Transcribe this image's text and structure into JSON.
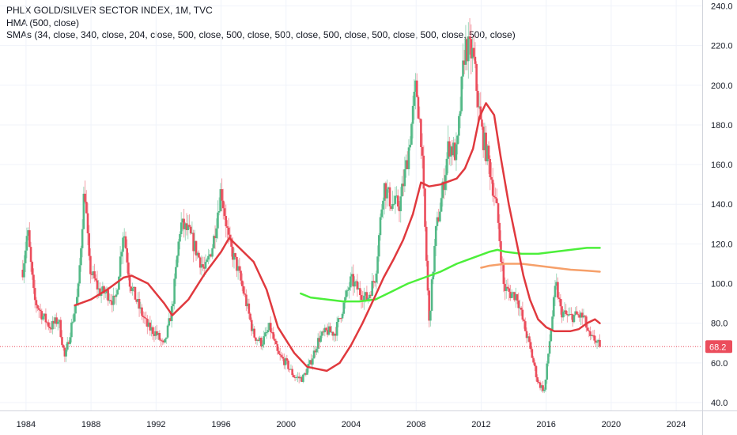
{
  "legend": {
    "title": "PHLX GOLD/SILVER SECTOR INDEX, 1M, TVC",
    "hma": "HMA (500, close)",
    "smas": "SMAs (34, close, 340, close, 204, close, 500, close, 500, close, 500, close, 500, close, 500, close, 500, close, 500, close)"
  },
  "price_label": "68.2",
  "colors": {
    "up": "#53b987",
    "down": "#eb4d5c",
    "hma": "#e0393e",
    "sma_green": "#4cef3a",
    "sma_orange": "#f6a06a",
    "grid": "#f0f3fa",
    "price_line": "#eb4d5c"
  },
  "chart_data": {
    "type": "candlestick",
    "x_ticks": [
      "1984",
      "1988",
      "1992",
      "1996",
      "2000",
      "2004",
      "2008",
      "2012",
      "2016",
      "2020",
      "2024"
    ],
    "y_ticks": [
      "40.0",
      "60.0",
      "80.0",
      "100.0",
      "120.0",
      "140.0",
      "160.0",
      "180.0",
      "200.0",
      "220.0",
      "240.0"
    ],
    "ylim": [
      36,
      243
    ],
    "xlim": [
      1982.4,
      2025.6
    ],
    "last_price": 68.2,
    "price_series": [
      [
        1983.8,
        107
      ],
      [
        1984.1,
        127
      ],
      [
        1984.5,
        92
      ],
      [
        1985.0,
        84
      ],
      [
        1985.5,
        78
      ],
      [
        1986.0,
        82
      ],
      [
        1986.4,
        62
      ],
      [
        1986.7,
        75
      ],
      [
        1987.2,
        95
      ],
      [
        1987.6,
        150
      ],
      [
        1987.9,
        108
      ],
      [
        1988.5,
        96
      ],
      [
        1989.0,
        95
      ],
      [
        1989.5,
        90
      ],
      [
        1990.0,
        128
      ],
      [
        1990.4,
        100
      ],
      [
        1991.0,
        87
      ],
      [
        1991.5,
        78
      ],
      [
        1992.0,
        75
      ],
      [
        1992.5,
        68
      ],
      [
        1993.0,
        88
      ],
      [
        1993.5,
        130
      ],
      [
        1994.0,
        126
      ],
      [
        1994.5,
        116
      ],
      [
        1995.0,
        106
      ],
      [
        1995.5,
        120
      ],
      [
        1996.0,
        148
      ],
      [
        1996.5,
        120
      ],
      [
        1997.0,
        108
      ],
      [
        1997.5,
        92
      ],
      [
        1998.0,
        74
      ],
      [
        1998.5,
        70
      ],
      [
        1999.0,
        78
      ],
      [
        1999.5,
        64
      ],
      [
        2000.0,
        60
      ],
      [
        2000.5,
        53
      ],
      [
        2001.0,
        52
      ],
      [
        2001.5,
        60
      ],
      [
        2002.0,
        72
      ],
      [
        2002.5,
        76
      ],
      [
        2003.0,
        75
      ],
      [
        2003.5,
        88
      ],
      [
        2004.0,
        102
      ],
      [
        2004.5,
        96
      ],
      [
        2005.0,
        92
      ],
      [
        2005.5,
        104
      ],
      [
        2006.0,
        150
      ],
      [
        2006.5,
        140
      ],
      [
        2007.0,
        140
      ],
      [
        2007.5,
        165
      ],
      [
        2008.0,
        200
      ],
      [
        2008.3,
        175
      ],
      [
        2008.8,
        80
      ],
      [
        2009.2,
        125
      ],
      [
        2009.6,
        145
      ],
      [
        2010.0,
        170
      ],
      [
        2010.5,
        165
      ],
      [
        2011.0,
        220
      ],
      [
        2011.5,
        215
      ],
      [
        2012.0,
        178
      ],
      [
        2012.5,
        160
      ],
      [
        2013.0,
        135
      ],
      [
        2013.4,
        98
      ],
      [
        2013.8,
        95
      ],
      [
        2014.2,
        94
      ],
      [
        2014.6,
        80
      ],
      [
        2015.0,
        68
      ],
      [
        2015.5,
        50
      ],
      [
        2015.9,
        46
      ],
      [
        2016.2,
        70
      ],
      [
        2016.6,
        100
      ],
      [
        2016.9,
        86
      ],
      [
        2017.4,
        83
      ],
      [
        2017.9,
        84
      ],
      [
        2018.3,
        83
      ],
      [
        2018.7,
        72
      ],
      [
        2019.0,
        72
      ],
      [
        2019.3,
        68.2
      ]
    ],
    "hma_series": [
      [
        1987.0,
        89
      ],
      [
        1988.0,
        92
      ],
      [
        1989.0,
        97
      ],
      [
        1990.0,
        103
      ],
      [
        1990.5,
        104
      ],
      [
        1991.5,
        100
      ],
      [
        1992.5,
        90
      ],
      [
        1993.0,
        84
      ],
      [
        1994.0,
        92
      ],
      [
        1995.0,
        105
      ],
      [
        1996.0,
        116
      ],
      [
        1996.5,
        123
      ],
      [
        1997.0,
        119
      ],
      [
        1998.0,
        111
      ],
      [
        1998.8,
        97
      ],
      [
        1999.5,
        78
      ],
      [
        2000.5,
        65
      ],
      [
        2001.3,
        58
      ],
      [
        2002.5,
        56
      ],
      [
        2003.3,
        60
      ],
      [
        2004.0,
        69
      ],
      [
        2004.7,
        80
      ],
      [
        2005.5,
        94
      ],
      [
        2006.0,
        103
      ],
      [
        2006.6,
        112
      ],
      [
        2007.2,
        122
      ],
      [
        2007.8,
        135
      ],
      [
        2008.3,
        151
      ],
      [
        2008.8,
        149
      ],
      [
        2009.5,
        150
      ],
      [
        2010.5,
        153
      ],
      [
        2011.0,
        158
      ],
      [
        2011.5,
        168
      ],
      [
        2011.9,
        184
      ],
      [
        2012.3,
        191
      ],
      [
        2012.8,
        185
      ],
      [
        2013.2,
        164
      ],
      [
        2013.7,
        140
      ],
      [
        2014.2,
        120
      ],
      [
        2014.6,
        104
      ],
      [
        2015.0,
        92
      ],
      [
        2015.5,
        82
      ],
      [
        2016.0,
        78
      ],
      [
        2016.5,
        76
      ],
      [
        2017.0,
        76
      ],
      [
        2017.5,
        76
      ],
      [
        2018.0,
        77
      ],
      [
        2018.5,
        80
      ],
      [
        2019.0,
        82
      ],
      [
        2019.3,
        80
      ]
    ],
    "sma_green_series": [
      [
        2000.9,
        95
      ],
      [
        2001.5,
        93
      ],
      [
        2002.5,
        92
      ],
      [
        2003.5,
        91
      ],
      [
        2004.5,
        91
      ],
      [
        2005.5,
        92
      ],
      [
        2006.5,
        96
      ],
      [
        2007.5,
        100
      ],
      [
        2008.5,
        103
      ],
      [
        2009.5,
        106
      ],
      [
        2010.5,
        110
      ],
      [
        2011.5,
        113
      ],
      [
        2012.5,
        116
      ],
      [
        2013.0,
        117
      ],
      [
        2013.5,
        116
      ],
      [
        2014.5,
        115
      ],
      [
        2015.5,
        115
      ],
      [
        2016.5,
        116
      ],
      [
        2017.5,
        117
      ],
      [
        2018.5,
        118
      ],
      [
        2019.3,
        118
      ]
    ],
    "sma_orange_series": [
      [
        2012.0,
        108
      ],
      [
        2012.5,
        109
      ],
      [
        2013.0,
        109.5
      ],
      [
        2013.5,
        110
      ],
      [
        2014.5,
        110
      ],
      [
        2015.5,
        109
      ],
      [
        2016.5,
        108
      ],
      [
        2017.5,
        107
      ],
      [
        2018.5,
        106.5
      ],
      [
        2019.3,
        106
      ]
    ]
  }
}
